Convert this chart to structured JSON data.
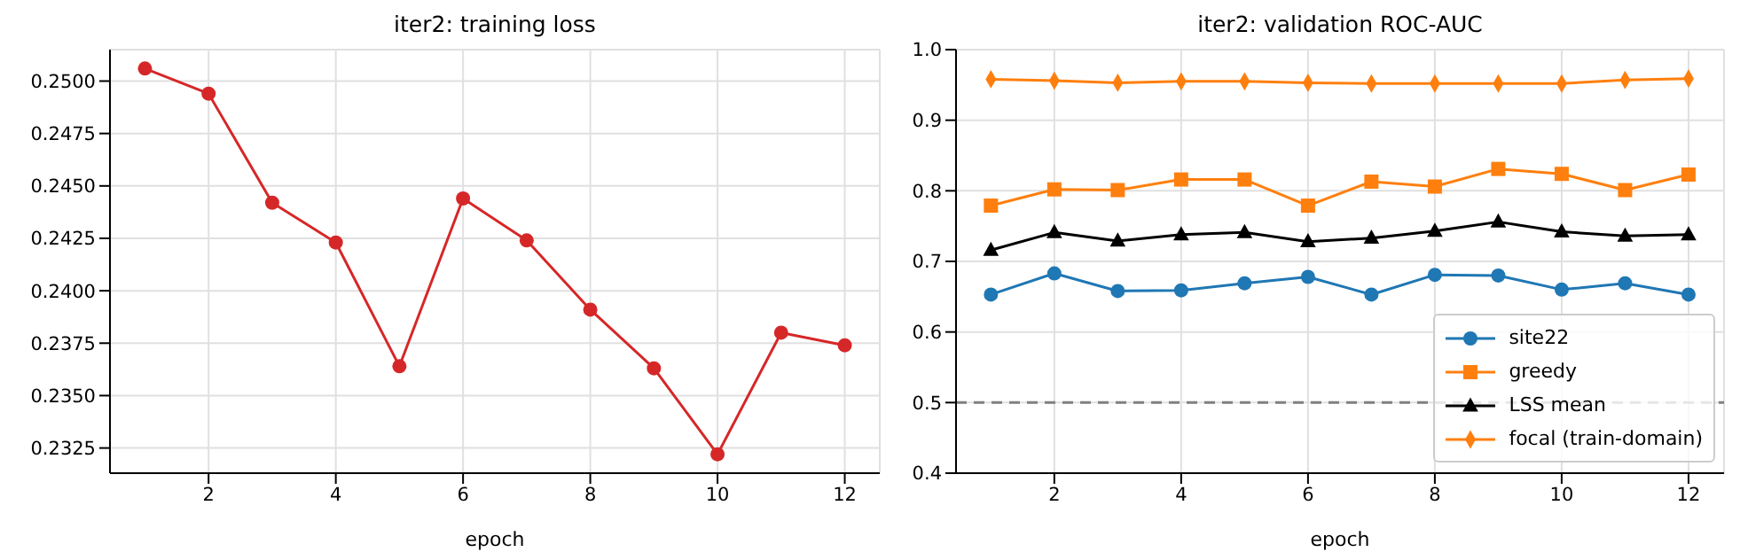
{
  "chart_data": [
    {
      "type": "line",
      "title": "iter2: training loss",
      "xlabel": "epoch",
      "x": [
        1,
        2,
        3,
        4,
        5,
        6,
        7,
        8,
        9,
        10,
        11,
        12
      ],
      "series": [
        {
          "color": "#d62728",
          "values": [
            0.2506,
            0.2494,
            0.2442,
            0.2423,
            0.2364,
            0.2444,
            0.2424,
            0.2391,
            0.2363,
            0.2322,
            0.238,
            0.2374
          ]
        }
      ],
      "marker": "circle",
      "xlim": [
        0.45,
        12.55
      ],
      "ylim": [
        0.2313,
        0.2515
      ],
      "xticks": [
        2,
        4,
        6,
        8,
        10,
        12
      ],
      "yticks": [
        {
          "value": 0.2325,
          "label": "0.2325"
        },
        {
          "value": 0.235,
          "label": "0.2350"
        },
        {
          "value": 0.2375,
          "label": "0.2375"
        },
        {
          "value": 0.24,
          "label": "0.2400"
        },
        {
          "value": 0.2425,
          "label": "0.2425"
        },
        {
          "value": 0.245,
          "label": "0.2450"
        },
        {
          "value": 0.2475,
          "label": "0.2475"
        },
        {
          "value": 0.25,
          "label": "0.2500"
        }
      ],
      "grid": true,
      "legend": false
    },
    {
      "type": "line",
      "title": "iter2: validation ROC-AUC",
      "xlabel": "epoch",
      "x": [
        1,
        2,
        3,
        4,
        5,
        6,
        7,
        8,
        9,
        10,
        11,
        12
      ],
      "series": [
        {
          "name": "site22",
          "color": "#1f77b4",
          "marker": "circle",
          "values": [
            0.653,
            0.683,
            0.658,
            0.659,
            0.669,
            0.678,
            0.653,
            0.681,
            0.68,
            0.66,
            0.669,
            0.653
          ]
        },
        {
          "name": "greedy",
          "color": "#ff7f0e",
          "marker": "square",
          "values": [
            0.779,
            0.802,
            0.801,
            0.816,
            0.816,
            0.779,
            0.813,
            0.806,
            0.831,
            0.824,
            0.801,
            0.823
          ]
        },
        {
          "name": "LSS mean",
          "color": "#000000",
          "marker": "triangle",
          "values": [
            0.716,
            0.741,
            0.729,
            0.738,
            0.741,
            0.728,
            0.733,
            0.743,
            0.756,
            0.742,
            0.736,
            0.738
          ]
        },
        {
          "name": "focal (train-domain)",
          "color": "#ff7f0e",
          "marker": "diamond",
          "values": [
            0.958,
            0.956,
            0.953,
            0.955,
            0.955,
            0.953,
            0.952,
            0.952,
            0.952,
            0.952,
            0.957,
            0.959
          ]
        }
      ],
      "xlim": [
        0.45,
        12.56
      ],
      "ylim": [
        0.4,
        1.0
      ],
      "xticks": [
        2,
        4,
        6,
        8,
        10,
        12
      ],
      "yticks": [
        0.4,
        0.5,
        0.6,
        0.7,
        0.8,
        0.9,
        {
          "value": 1,
          "label": "1.0"
        }
      ],
      "ref_lines": [
        {
          "axis": "y",
          "value": 0.5,
          "color": "#808080",
          "line_style": "dashed"
        }
      ],
      "grid": true,
      "legend": "bottom right"
    }
  ]
}
